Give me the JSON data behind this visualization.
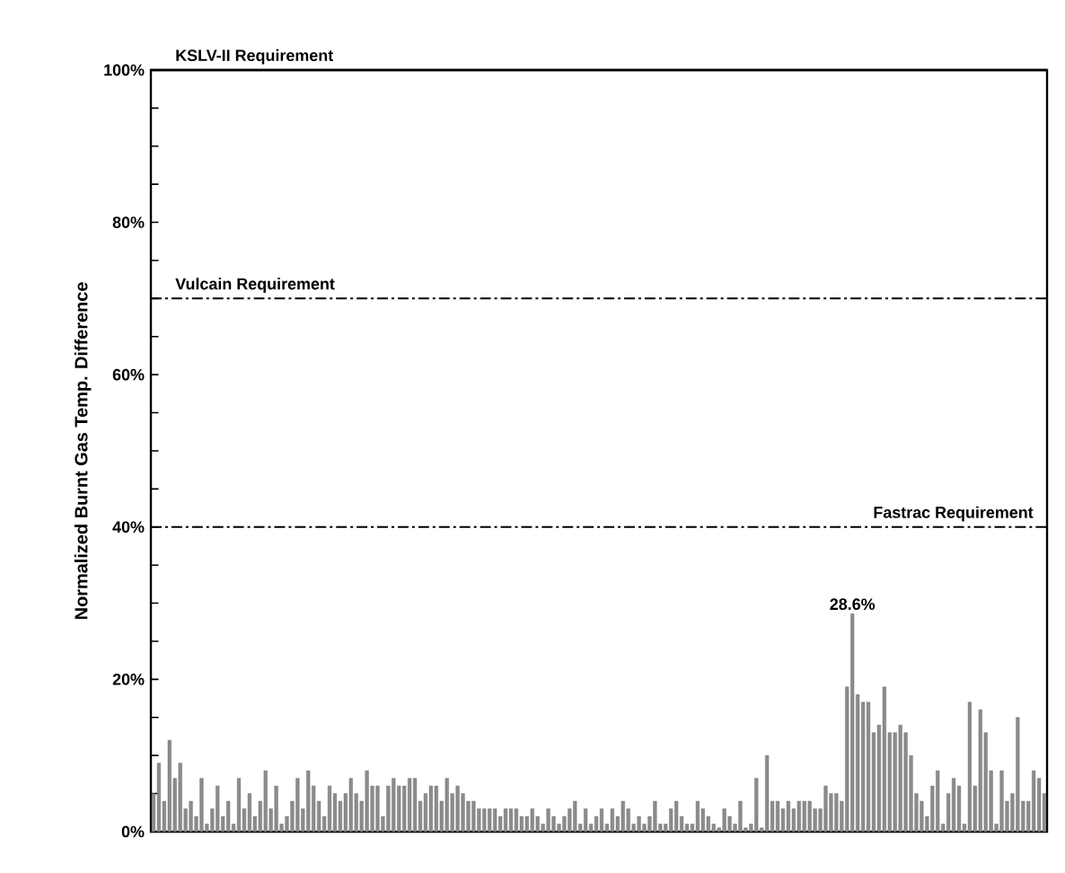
{
  "chart_data": {
    "type": "bar",
    "ylabel": "Normalized Burnt Gas Temp. Difference",
    "categories": [
      null,
      null,
      null,
      null,
      null,
      null,
      null,
      null,
      null,
      null,
      null,
      null,
      null,
      null,
      null,
      null,
      null,
      null,
      null,
      null,
      null,
      null,
      null,
      null,
      null,
      null,
      null,
      null,
      null,
      null,
      null,
      null,
      null,
      null,
      null,
      null,
      null,
      null,
      null,
      null,
      null,
      null,
      null,
      null,
      null,
      null,
      null,
      null,
      null,
      null,
      null,
      null,
      null,
      null,
      null,
      null,
      null,
      null,
      null,
      null,
      null,
      null,
      null,
      null,
      null,
      null,
      null,
      null,
      null,
      null,
      null,
      null,
      null,
      null,
      null,
      null,
      null,
      null,
      null,
      null,
      null,
      null,
      null,
      null,
      null,
      null,
      null,
      null,
      null,
      null,
      null,
      null,
      null,
      null,
      null,
      null,
      null,
      null,
      null,
      null,
      null,
      null,
      null,
      null,
      null,
      null,
      null,
      null,
      null,
      null,
      null,
      null,
      null,
      null,
      null,
      null,
      null,
      null,
      null,
      null,
      null,
      null,
      null,
      null,
      null,
      null,
      null,
      null,
      null,
      null,
      null,
      null,
      null,
      null,
      null,
      null,
      null,
      null,
      null,
      null,
      null,
      null,
      null,
      null,
      null,
      null,
      null,
      null,
      null,
      null,
      null,
      null,
      null,
      null,
      null,
      null,
      null,
      null,
      null,
      null,
      null,
      null,
      null,
      null,
      null,
      null,
      null,
      null
    ],
    "values": [
      5,
      9,
      4,
      12,
      7,
      9,
      3,
      4,
      2,
      7,
      1,
      3,
      6,
      2,
      4,
      1,
      7,
      3,
      5,
      2,
      4,
      8,
      3,
      6,
      1,
      2,
      4,
      7,
      3,
      8,
      6,
      4,
      2,
      6,
      5,
      4,
      5,
      7,
      5,
      4,
      8,
      6,
      6,
      2,
      6,
      7,
      6,
      6,
      7,
      7,
      4,
      5,
      6,
      6,
      4,
      7,
      5,
      6,
      5,
      4,
      4,
      3,
      3,
      3,
      3,
      2,
      3,
      3,
      3,
      2,
      2,
      3,
      2,
      1,
      3,
      2,
      1,
      2,
      3,
      4,
      1,
      3,
      1,
      2,
      3,
      1,
      3,
      2,
      4,
      3,
      1,
      2,
      1,
      2,
      4,
      1,
      1,
      3,
      4,
      2,
      1,
      1,
      4,
      3,
      2,
      1,
      0.5,
      3,
      2,
      1,
      4,
      0.5,
      1,
      7,
      0.5,
      10,
      4,
      4,
      3,
      4,
      3,
      4,
      4,
      4,
      3,
      3,
      6,
      5,
      5,
      4,
      19,
      28.6,
      18,
      17,
      17,
      13,
      14,
      19,
      13,
      13,
      14,
      13,
      10,
      5,
      4,
      2,
      6,
      8,
      1,
      5,
      7,
      6,
      1,
      17,
      6,
      16,
      13,
      8,
      1,
      8,
      4,
      5,
      15,
      4,
      4,
      8,
      7,
      5
    ],
    "value_labels": [
      null,
      null,
      null,
      null,
      null,
      null,
      null,
      null,
      null,
      null,
      null,
      null,
      null,
      null,
      null,
      null,
      null,
      null,
      null,
      null,
      null,
      null,
      null,
      null,
      null,
      null,
      null,
      null,
      null,
      null,
      null,
      null,
      null,
      null,
      null,
      null,
      null,
      null,
      null,
      null,
      null,
      null,
      null,
      null,
      null,
      null,
      null,
      null,
      null,
      null,
      null,
      null,
      null,
      null,
      null,
      null,
      null,
      null,
      null,
      null,
      null,
      null,
      null,
      null,
      null,
      null,
      null,
      null,
      null,
      null,
      null,
      null,
      null,
      null,
      null,
      null,
      null,
      null,
      null,
      null,
      null,
      null,
      null,
      null,
      null,
      null,
      null,
      null,
      null,
      null,
      null,
      null,
      null,
      null,
      null,
      null,
      null,
      null,
      null,
      null,
      null,
      null,
      null,
      null,
      null,
      null,
      null,
      null,
      null,
      null,
      null,
      null,
      null,
      null,
      null,
      null,
      null,
      null,
      null,
      null,
      null,
      null,
      null,
      null,
      null,
      null,
      null,
      null,
      null,
      null,
      null,
      "28.6%",
      null,
      null,
      null,
      null,
      null,
      null,
      null,
      null,
      null,
      null,
      null,
      null,
      null,
      null,
      null,
      null,
      null,
      null,
      null,
      null,
      null,
      null,
      null,
      null,
      null,
      null,
      null,
      null,
      null,
      null,
      null,
      null,
      null,
      null,
      null,
      null
    ],
    "color": "#8c8c8c",
    "ylim": [
      0,
      100
    ],
    "yticks": [
      {
        "value": 0,
        "label": "0%"
      },
      {
        "value": 5,
        "label": null
      },
      {
        "value": 10,
        "label": null
      },
      {
        "value": 15,
        "label": null
      },
      {
        "value": 20,
        "label": "20%"
      },
      {
        "value": 25,
        "label": null
      },
      {
        "value": 30,
        "label": null
      },
      {
        "value": 35,
        "label": null
      },
      {
        "value": 40,
        "label": "40%"
      },
      {
        "value": 45,
        "label": null
      },
      {
        "value": 50,
        "label": null
      },
      {
        "value": 55,
        "label": null
      },
      {
        "value": 60,
        "label": "60%"
      },
      {
        "value": 65,
        "label": null
      },
      {
        "value": 70,
        "label": null
      },
      {
        "value": 75,
        "label": null
      },
      {
        "value": 80,
        "label": "80%"
      },
      {
        "value": 85,
        "label": null
      },
      {
        "value": 90,
        "label": null
      },
      {
        "value": 95,
        "label": null
      },
      {
        "value": 100,
        "label": "100%"
      }
    ],
    "tick_labels": "y",
    "ref_lines": [
      {
        "axis": "y",
        "value": 100,
        "label": "KSLV-II Requirement"
      },
      {
        "axis": "y",
        "value": 70,
        "label": "Vulcain Requirement",
        "line_style": "dashdot"
      },
      {
        "axis": "y",
        "value": 40,
        "label": "Fastrac Requirement",
        "line_style": "dashdot"
      }
    ]
  }
}
